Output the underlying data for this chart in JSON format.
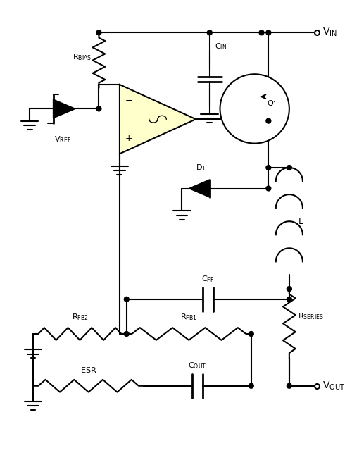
{
  "background_color": "#ffffff",
  "line_color": "#000000",
  "line_width": 1.5,
  "component_fill": "#ffffcc",
  "figsize": [
    5.0,
    6.53
  ],
  "dpi": 100
}
